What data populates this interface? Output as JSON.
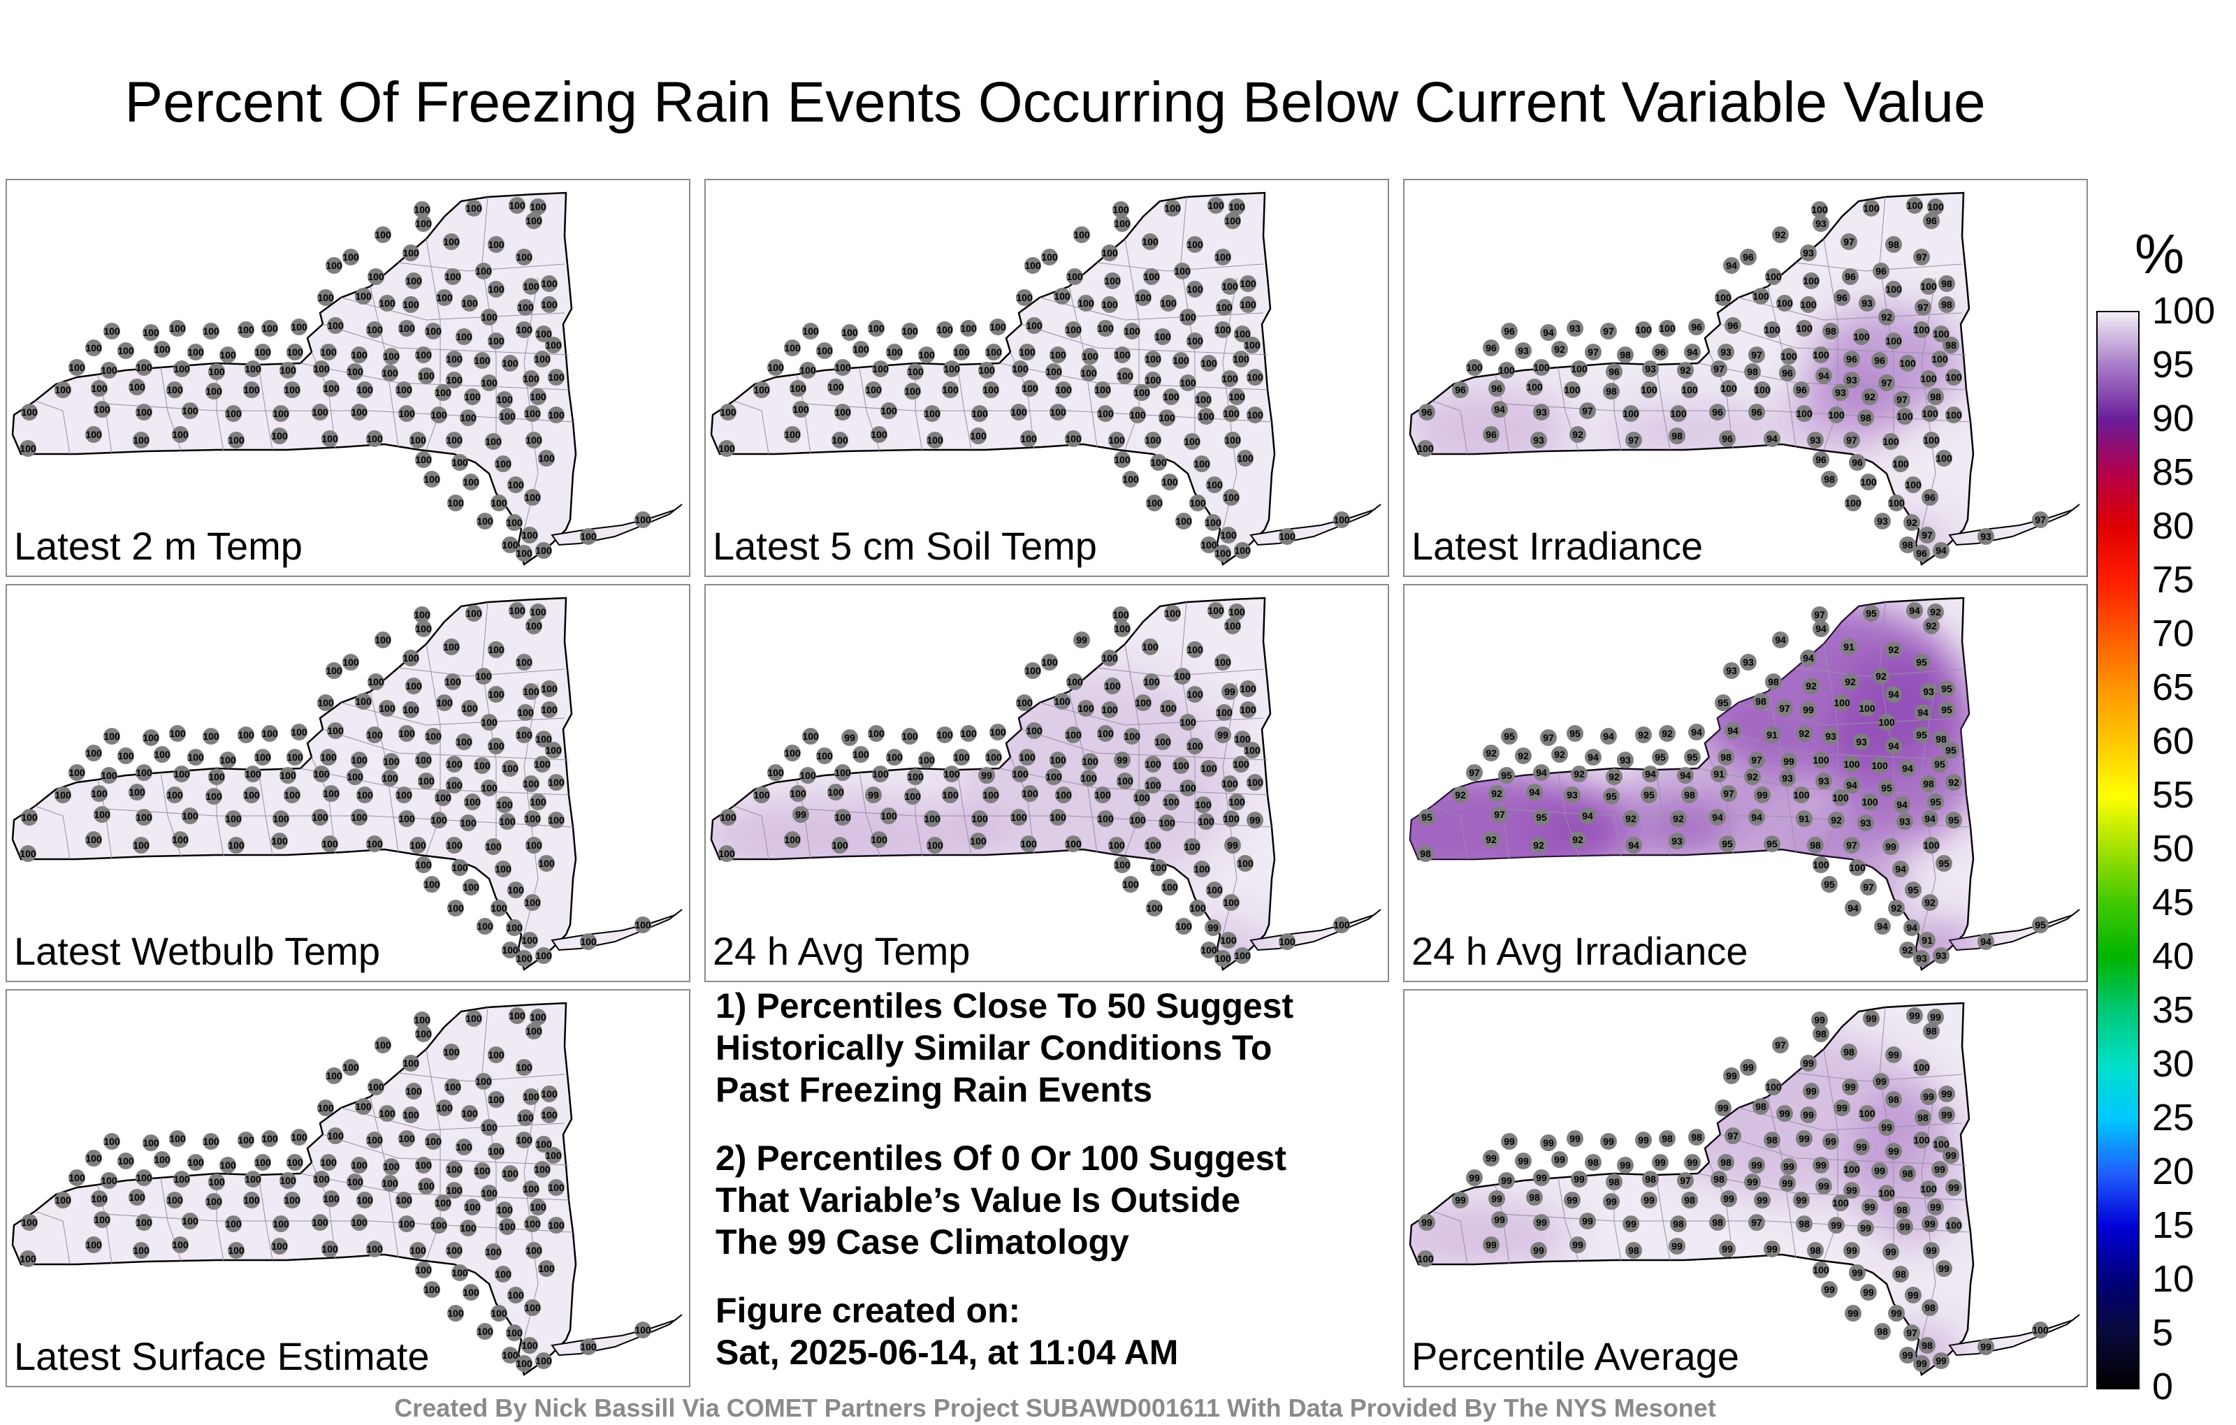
{
  "title": "Percent Of Freezing Rain Events Occurring Below Current Variable Value",
  "panels": [
    {
      "label": "Latest 2 m Temp",
      "style": "flat"
    },
    {
      "label": "Latest 5 cm Soil Temp",
      "style": "flat"
    },
    {
      "label": "Latest Irradiance",
      "style": "irradiance"
    },
    {
      "label": "Latest Wetbulb Temp",
      "style": "flat"
    },
    {
      "label": "24 h Avg Temp",
      "style": "avgtemp"
    },
    {
      "label": "24 h Avg Irradiance",
      "style": "avgirr"
    },
    {
      "label": "Latest Surface Estimate",
      "style": "flat"
    },
    {
      "label": "Percentile Average",
      "style": "avg"
    }
  ],
  "notes": {
    "note1": "1) Percentiles Close To 50 Suggest\nHistorically Similar Conditions To\nPast Freezing Rain Events",
    "note2": "2) Percentiles Of 0 Or 100 Suggest\nThat Variable’s Value Is Outside\nThe 99 Case Climatology",
    "created": "Figure created on:\nSat, 2025-06-14, at 11:04 AM"
  },
  "colorbar": {
    "unit": "%",
    "ticks": [
      "100",
      "95",
      "90",
      "85",
      "80",
      "75",
      "70",
      "65",
      "60",
      "55",
      "50",
      "45",
      "40",
      "35",
      "30",
      "25",
      "20",
      "15",
      "10",
      "5",
      "0"
    ]
  },
  "footer": "Created By Nick Bassill Via COMET Partners Project SUBAWD001611 With Data Provided By The NYS Mesonet",
  "station_values": {
    "flat": [
      "100"
    ],
    "irradiance": [
      "100",
      "100",
      "100",
      "100",
      "96",
      "93",
      "92",
      "97",
      "98",
      "96",
      "94",
      "93",
      "97",
      "100",
      "100",
      "96",
      "96",
      "100",
      "100",
      "98"
    ],
    "avgtemp": [
      "100",
      "100",
      "100",
      "100",
      "100",
      "100",
      "99",
      "100",
      "100",
      "100",
      "100",
      "100"
    ],
    "avgirr": [
      "97",
      "95",
      "94",
      "92",
      "92",
      "94",
      "94",
      "91",
      "92",
      "93",
      "93",
      "94",
      "95",
      "98",
      "92",
      "92",
      "92",
      "94",
      "93",
      "95",
      "95",
      "98",
      "97",
      "99",
      "100",
      "100",
      "100",
      "94",
      "95",
      "95"
    ],
    "avg": [
      "99",
      "99",
      "99",
      "99",
      "98",
      "98",
      "97",
      "98",
      "99",
      "99",
      "99",
      "99",
      "100",
      "100",
      "99",
      "99",
      "99",
      "98",
      "99",
      "99",
      "99",
      "98",
      "99",
      "99",
      "99",
      "100",
      "99",
      "98",
      "99",
      "99"
    ]
  },
  "colors": {
    "panel_border": "#8a8a8a",
    "map_fill": "#efeaf3",
    "station_marker": "#7f7f7f",
    "footer_text": "#8a8a8a"
  }
}
